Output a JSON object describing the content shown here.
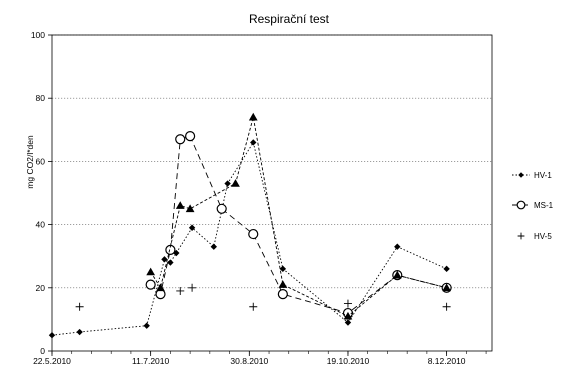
{
  "chart_data": {
    "type": "line",
    "title": "Respirační test",
    "ylabel": "mg CO2/l*den",
    "xlabel": "",
    "ylim": [
      0,
      100
    ],
    "y_ticks": [
      0,
      20,
      40,
      60,
      80,
      100
    ],
    "x_range": [
      "2010-05-22",
      "2010-12-31"
    ],
    "x_ticks": [
      {
        "date": "2010-05-22",
        "label": "22.5.2010"
      },
      {
        "date": "2010-07-11",
        "label": "11.7.2010"
      },
      {
        "date": "2010-08-30",
        "label": "30.8.2010"
      },
      {
        "date": "2010-10-19",
        "label": "19.10.2010"
      },
      {
        "date": "2010-12-08",
        "label": "8.12.2010"
      }
    ],
    "grid": "horizontal dotted",
    "legend_position": "right",
    "series": [
      {
        "name": "HV-1",
        "style": "dotted line with filled diamonds",
        "points": [
          {
            "x": "2010-05-22",
            "y": 5
          },
          {
            "x": "2010-06-05",
            "y": 6
          },
          {
            "x": "2010-07-09",
            "y": 8
          },
          {
            "x": "2010-07-18",
            "y": 29
          },
          {
            "x": "2010-07-21",
            "y": 28
          },
          {
            "x": "2010-07-24",
            "y": 31
          },
          {
            "x": "2010-08-01",
            "y": 39
          },
          {
            "x": "2010-08-12",
            "y": 33
          },
          {
            "x": "2010-08-19",
            "y": 53
          },
          {
            "x": "2010-09-01",
            "y": 66
          },
          {
            "x": "2010-09-16",
            "y": 26
          },
          {
            "x": "2010-10-19",
            "y": 9
          },
          {
            "x": "2010-11-13",
            "y": 33
          },
          {
            "x": "2010-12-08",
            "y": 26
          }
        ]
      },
      {
        "name": "MS-1",
        "style": "long-dash line with open circles",
        "points": [
          {
            "x": "2010-07-11",
            "y": 21
          },
          {
            "x": "2010-07-16",
            "y": 18
          },
          {
            "x": "2010-07-21",
            "y": 32
          },
          {
            "x": "2010-07-26",
            "y": 67
          },
          {
            "x": "2010-07-31",
            "y": 68
          },
          {
            "x": "2010-08-16",
            "y": 45
          },
          {
            "x": "2010-09-01",
            "y": 37
          },
          {
            "x": "2010-09-16",
            "y": 18
          },
          {
            "x": "2010-10-19",
            "y": 12
          },
          {
            "x": "2010-11-13",
            "y": 24
          },
          {
            "x": "2010-12-08",
            "y": 20
          }
        ]
      },
      {
        "name": "",
        "style": "short-dash line with filled triangles",
        "points": [
          {
            "x": "2010-07-11",
            "y": 25
          },
          {
            "x": "2010-07-16",
            "y": 20
          },
          {
            "x": "2010-07-26",
            "y": 46
          },
          {
            "x": "2010-07-31",
            "y": 45
          },
          {
            "x": "2010-08-23",
            "y": 53
          },
          {
            "x": "2010-09-01",
            "y": 74
          },
          {
            "x": "2010-09-16",
            "y": 21
          },
          {
            "x": "2010-10-19",
            "y": 11
          },
          {
            "x": "2010-11-13",
            "y": 24
          },
          {
            "x": "2010-12-08",
            "y": 20
          }
        ]
      },
      {
        "name": "HV-5",
        "style": "plus markers, no line",
        "points": [
          {
            "x": "2010-06-05",
            "y": 14
          },
          {
            "x": "2010-07-26",
            "y": 19
          },
          {
            "x": "2010-08-01",
            "y": 20
          },
          {
            "x": "2010-09-01",
            "y": 14
          },
          {
            "x": "2010-10-19",
            "y": 15
          },
          {
            "x": "2010-12-08",
            "y": 14
          }
        ]
      }
    ],
    "legend": [
      {
        "label": "HV-1",
        "series": 0
      },
      {
        "label": "MS-1",
        "series": 1
      },
      {
        "label": "HV-5",
        "series": 3
      }
    ],
    "colors": {
      "line": "#000000",
      "grid": "#666666",
      "background": "#ffffff"
    }
  }
}
